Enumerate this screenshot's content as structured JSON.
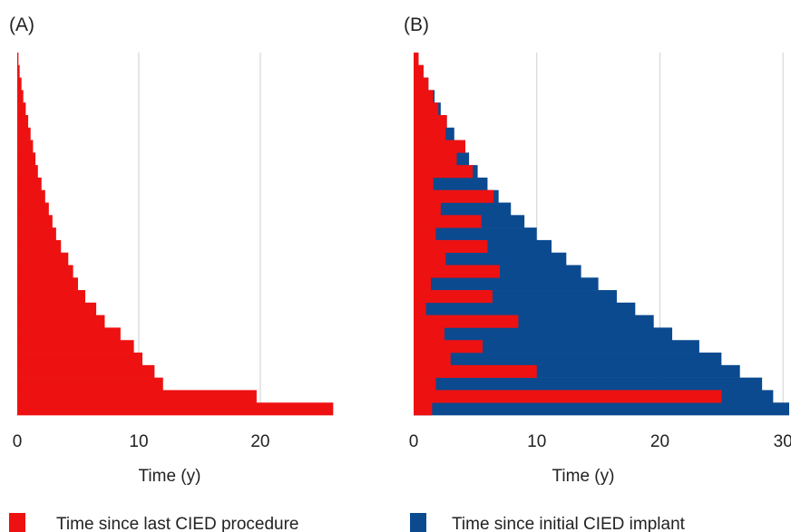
{
  "colors": {
    "last_procedure": "#ee1111",
    "initial_implant": "#0b4a8f",
    "grid": "#d6d6d6"
  },
  "legend": [
    {
      "label": "Time since last CIED procedure",
      "color": "#ee1111"
    },
    {
      "label": "Time since initial CIED implant",
      "color": "#0b4a8f"
    }
  ],
  "chart_data": [
    {
      "type": "bar",
      "orientation": "horizontal",
      "panel_label": "(A)",
      "xlabel": "Time (y)",
      "xticks": [
        0,
        10,
        20
      ],
      "xlim": [
        0,
        26.2
      ],
      "grid": "vertical",
      "sorted": "descending from bottom to top",
      "series": [
        {
          "name": "Time since last CIED procedure",
          "color": "#ee1111",
          "values": [
            26,
            19.7,
            12,
            11.3,
            10.3,
            9.6,
            8.5,
            7.2,
            6.5,
            5.6,
            5.0,
            4.6,
            4.2,
            3.6,
            3.2,
            2.9,
            2.6,
            2.3,
            2.0,
            1.7,
            1.5,
            1.3,
            1.1,
            0.9,
            0.7,
            0.5,
            0.35,
            0.2,
            0.1
          ]
        }
      ]
    },
    {
      "type": "bar",
      "orientation": "horizontal",
      "stacked": "overlay",
      "panel_label": "(B)",
      "xlabel": "Time (y)",
      "xticks": [
        0,
        10,
        20,
        30
      ],
      "xlim": [
        0,
        30.5
      ],
      "grid": "vertical",
      "sorted": "descending from bottom to top",
      "series": [
        {
          "name": "Time since initial CIED implant",
          "color": "#0b4a8f",
          "values": [
            30.5,
            29.2,
            28.3,
            26.5,
            25.0,
            23.2,
            21.0,
            19.5,
            18.0,
            16.5,
            15.0,
            13.6,
            12.4,
            11.2,
            10.0,
            9.0,
            7.9,
            6.9,
            6.0,
            5.2,
            4.5,
            3.9,
            3.3,
            2.7,
            2.2,
            1.7,
            1.2,
            0.8,
            0.4
          ]
        },
        {
          "name": "Time since last CIED procedure",
          "color": "#ee1111",
          "values": [
            1.5,
            25.0,
            1.8,
            10.0,
            3.0,
            5.6,
            2.5,
            8.5,
            1.0,
            6.4,
            1.4,
            7.0,
            2.6,
            6.0,
            1.8,
            5.5,
            2.2,
            6.5,
            1.6,
            4.8,
            3.5,
            4.2,
            2.6,
            2.7,
            2.0,
            1.6,
            1.2,
            0.8,
            0.4
          ]
        }
      ]
    }
  ]
}
